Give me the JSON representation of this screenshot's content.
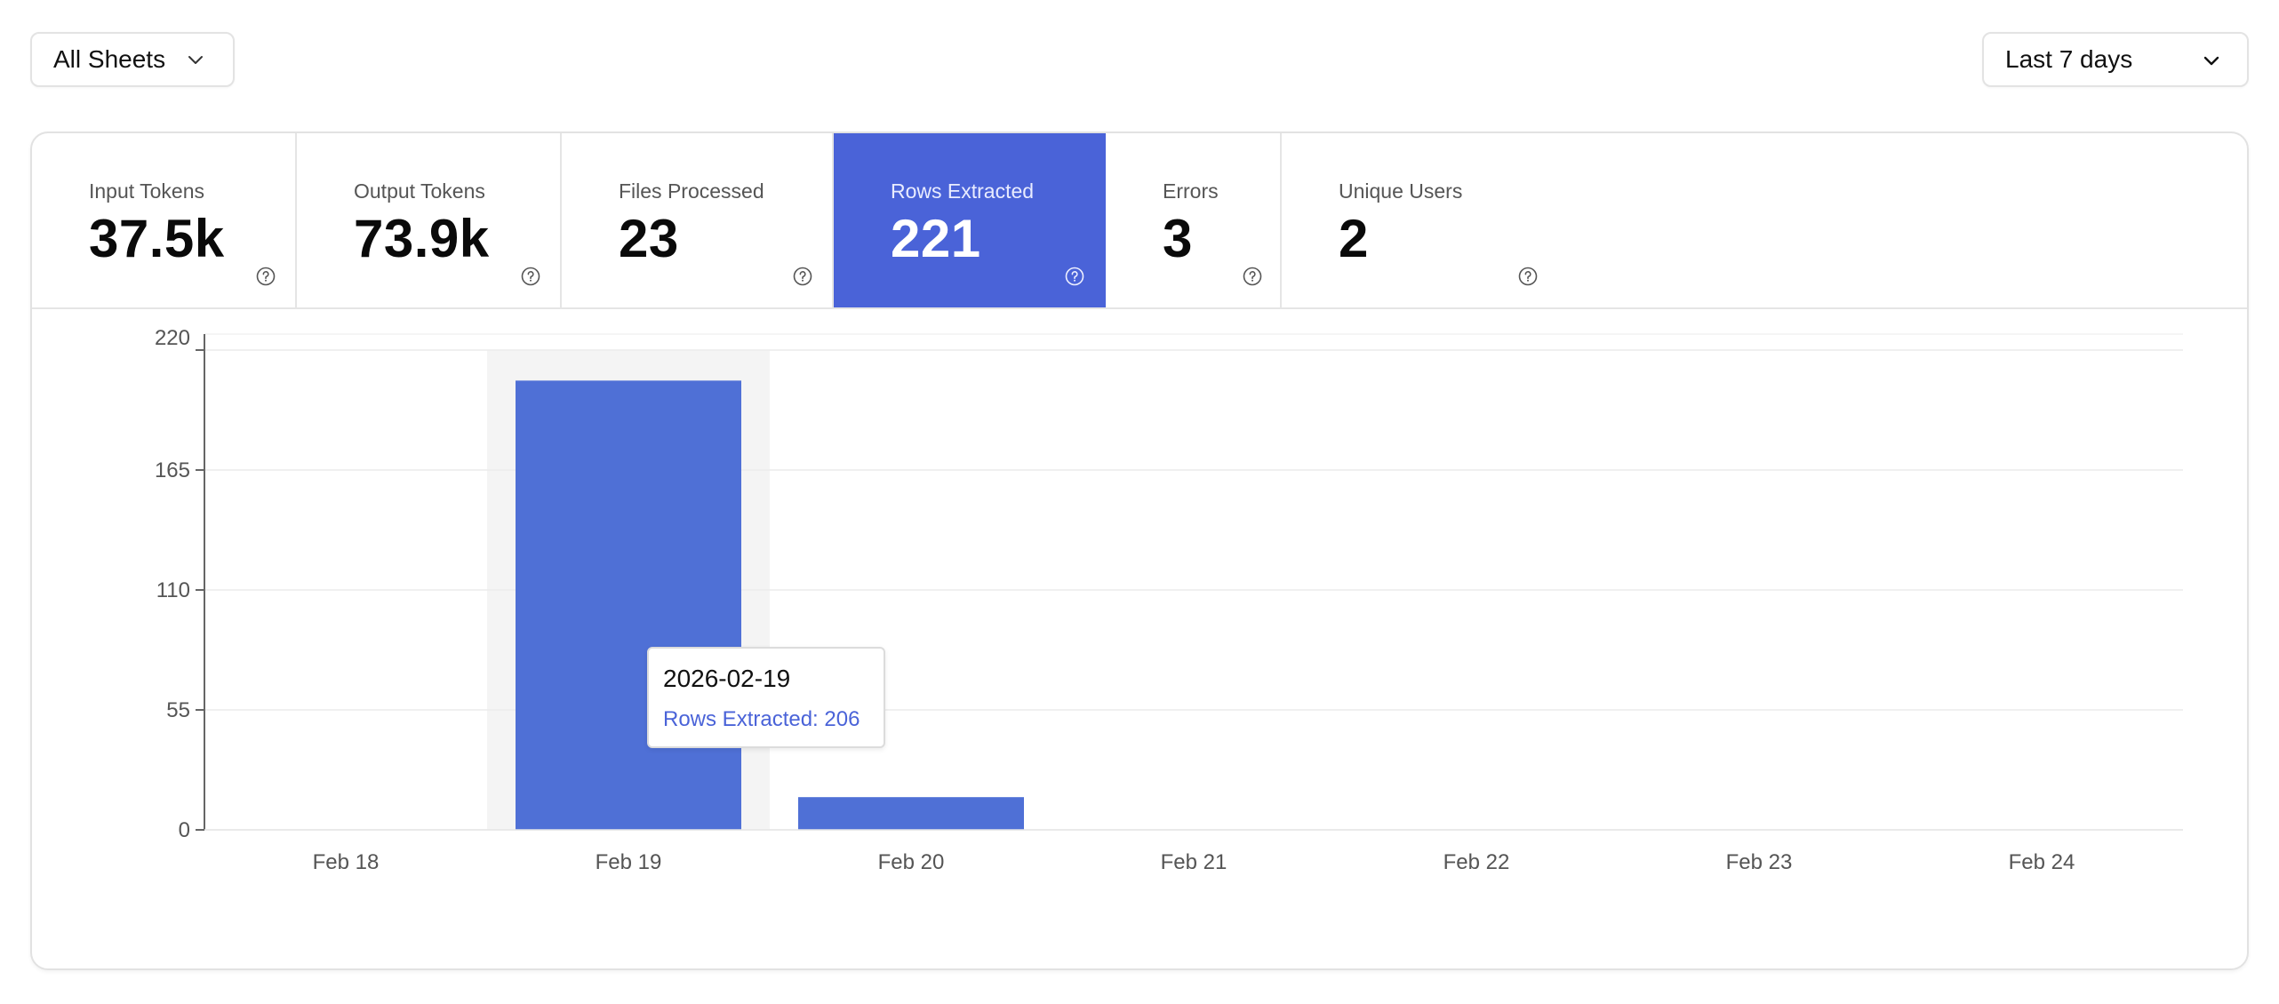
{
  "filters": {
    "sheets_label": "All Sheets",
    "range_label": "Last 7 days"
  },
  "metrics": [
    {
      "label": "Input Tokens",
      "value": "37.5k",
      "active": false
    },
    {
      "label": "Output Tokens",
      "value": "73.9k",
      "active": false
    },
    {
      "label": "Files Processed",
      "value": "23",
      "active": false
    },
    {
      "label": "Rows Extracted",
      "value": "221",
      "active": true
    },
    {
      "label": "Errors",
      "value": "3",
      "active": false
    },
    {
      "label": "Unique Users",
      "value": "2",
      "active": false
    }
  ],
  "colors": {
    "accent": "#4a63d8",
    "bar": "#4f70d6",
    "hover_band": "#f4f4f4"
  },
  "tooltip": {
    "title": "2026-02-19",
    "line": "Rows Extracted: 206"
  },
  "chart_data": {
    "type": "bar",
    "categories": [
      "Feb 18",
      "Feb 19",
      "Feb 20",
      "Feb 21",
      "Feb 22",
      "Feb 23",
      "Feb 24"
    ],
    "series": [
      {
        "name": "Rows Extracted",
        "values": [
          0,
          206,
          15,
          0,
          0,
          0,
          0
        ]
      }
    ],
    "yticks": [
      0,
      55,
      110,
      165,
      220
    ],
    "ylim": [
      0,
      220
    ],
    "highlighted_category": "Feb 19",
    "grid": "horizontal",
    "title": "",
    "xlabel": "",
    "ylabel": ""
  }
}
